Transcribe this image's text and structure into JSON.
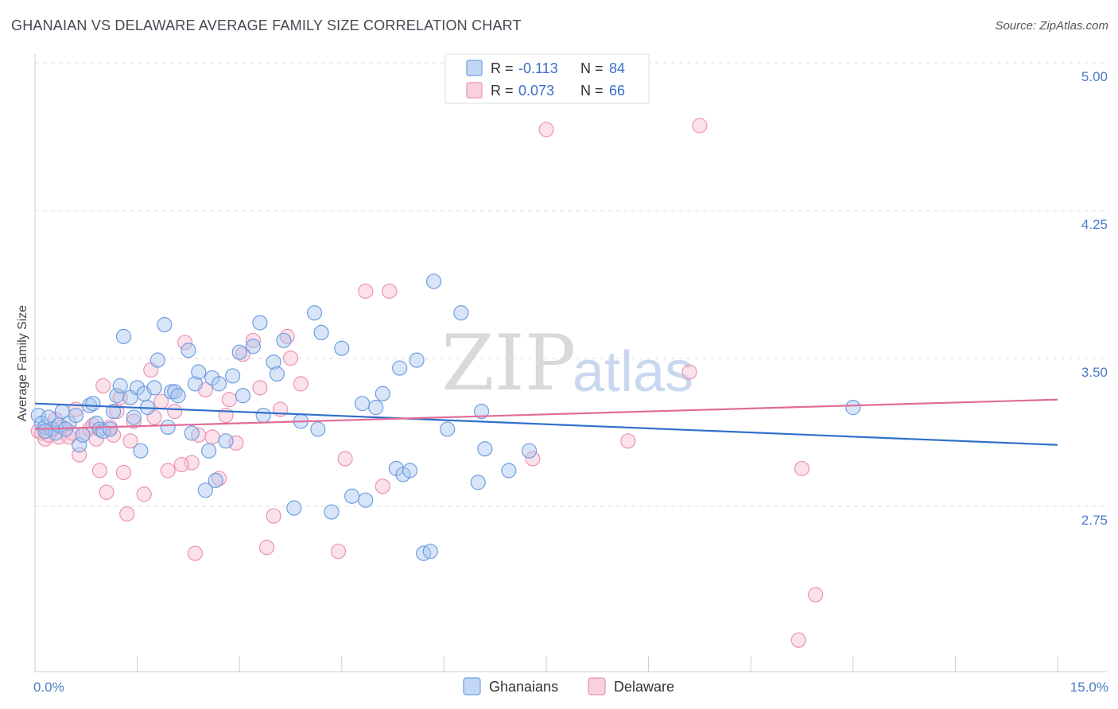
{
  "title": "GHANAIAN VS DELAWARE AVERAGE FAMILY SIZE CORRELATION CHART",
  "source": "Source: ZipAtlas.com",
  "watermark": {
    "zip": "ZIP",
    "atlas": "atlas"
  },
  "colors": {
    "ghanaians_fill": "#a8c6f0",
    "ghanaians_stroke": "#6f9ee0",
    "ghanaians_line": "#2f6fcc",
    "delaware_fill": "#f6bcd0",
    "delaware_stroke": "#ec93b3",
    "delaware_line": "#e06c98",
    "grid": "#dddddd",
    "axis_text": "#4a7cc7"
  },
  "legend": {
    "rows": [
      {
        "r_label": "R =",
        "r_value": "-0.113",
        "n_label": "N =",
        "n_value": "84"
      },
      {
        "r_label": "R =",
        "r_value": "0.073",
        "n_label": "N =",
        "n_value": "66"
      }
    ]
  },
  "bottom_legend": [
    "Ghanaians",
    "Delaware"
  ],
  "chart_data": {
    "type": "scatter",
    "ylabel": "Average Family Size",
    "xlim": [
      0,
      15
    ],
    "ylim": [
      2.0,
      5.1
    ],
    "x_tick_labels": [
      {
        "value": 0,
        "label": "0.0%"
      },
      {
        "value": 15,
        "label": "15.0%"
      }
    ],
    "y_ticks": [
      {
        "value": 2.75,
        "label": "2.75"
      },
      {
        "value": 3.5,
        "label": "3.50"
      },
      {
        "value": 4.25,
        "label": "4.25"
      },
      {
        "value": 5.0,
        "label": "5.00"
      }
    ],
    "series": [
      {
        "name": "Ghanaians",
        "r": -0.113,
        "n": 84,
        "trend": {
          "x": [
            0,
            15
          ],
          "y": [
            3.34,
            3.13
          ]
        },
        "points": [
          [
            0.05,
            3.28
          ],
          [
            0.1,
            3.24
          ],
          [
            0.15,
            3.22
          ],
          [
            0.2,
            3.27
          ],
          [
            0.25,
            3.21
          ],
          [
            0.3,
            3.19
          ],
          [
            0.35,
            3.23
          ],
          [
            0.4,
            3.3
          ],
          [
            0.5,
            3.24
          ],
          [
            0.6,
            3.28
          ],
          [
            0.65,
            3.13
          ],
          [
            0.7,
            3.18
          ],
          [
            0.8,
            3.33
          ],
          [
            0.85,
            3.34
          ],
          [
            0.9,
            3.24
          ],
          [
            0.95,
            3.21
          ],
          [
            1.0,
            3.2
          ],
          [
            1.1,
            3.21
          ],
          [
            1.15,
            3.3
          ],
          [
            1.2,
            3.38
          ],
          [
            1.25,
            3.43
          ],
          [
            1.3,
            3.68
          ],
          [
            1.4,
            3.37
          ],
          [
            1.45,
            3.27
          ],
          [
            1.5,
            3.42
          ],
          [
            1.55,
            3.1
          ],
          [
            1.6,
            3.39
          ],
          [
            1.65,
            3.32
          ],
          [
            1.75,
            3.42
          ],
          [
            1.8,
            3.56
          ],
          [
            1.9,
            3.74
          ],
          [
            1.95,
            3.22
          ],
          [
            2.0,
            3.4
          ],
          [
            2.05,
            3.4
          ],
          [
            2.1,
            3.38
          ],
          [
            2.25,
            3.61
          ],
          [
            2.3,
            3.19
          ],
          [
            2.35,
            3.44
          ],
          [
            2.4,
            3.5
          ],
          [
            2.5,
            2.9
          ],
          [
            2.55,
            3.1
          ],
          [
            2.6,
            3.47
          ],
          [
            2.65,
            2.95
          ],
          [
            2.7,
            3.44
          ],
          [
            2.8,
            3.15
          ],
          [
            2.9,
            3.48
          ],
          [
            3.05,
            3.38
          ],
          [
            3.2,
            3.63
          ],
          [
            3.3,
            3.75
          ],
          [
            3.35,
            3.28
          ],
          [
            3.5,
            3.55
          ],
          [
            3.55,
            3.49
          ],
          [
            3.65,
            3.66
          ],
          [
            3.8,
            2.81
          ],
          [
            3.9,
            3.25
          ],
          [
            4.1,
            3.8
          ],
          [
            4.15,
            3.21
          ],
          [
            4.2,
            3.7
          ],
          [
            4.35,
            2.79
          ],
          [
            4.5,
            3.62
          ],
          [
            4.65,
            2.87
          ],
          [
            4.8,
            3.34
          ],
          [
            4.85,
            2.85
          ],
          [
            5.0,
            3.32
          ],
          [
            5.1,
            3.39
          ],
          [
            5.3,
            3.01
          ],
          [
            5.35,
            3.52
          ],
          [
            5.4,
            2.98
          ],
          [
            5.5,
            3.0
          ],
          [
            5.6,
            3.56
          ],
          [
            5.7,
            2.58
          ],
          [
            5.8,
            2.59
          ],
          [
            5.85,
            3.96
          ],
          [
            6.05,
            3.21
          ],
          [
            6.25,
            3.8
          ],
          [
            6.5,
            2.94
          ],
          [
            6.55,
            3.3
          ],
          [
            6.6,
            3.11
          ],
          [
            6.95,
            3.0
          ],
          [
            7.25,
            3.1
          ],
          [
            12.0,
            3.32
          ],
          [
            0.15,
            3.2
          ],
          [
            0.45,
            3.21
          ],
          [
            3.0,
            3.6
          ]
        ]
      },
      {
        "name": "Delaware",
        "r": 0.073,
        "n": 66,
        "trend": {
          "x": [
            0,
            15
          ],
          "y": [
            3.21,
            3.36
          ]
        },
        "points": [
          [
            0.05,
            3.2
          ],
          [
            0.1,
            3.19
          ],
          [
            0.15,
            3.16
          ],
          [
            0.2,
            3.18
          ],
          [
            0.3,
            3.26
          ],
          [
            0.35,
            3.17
          ],
          [
            0.4,
            3.22
          ],
          [
            0.5,
            3.17
          ],
          [
            0.55,
            3.19
          ],
          [
            0.6,
            3.31
          ],
          [
            0.65,
            3.08
          ],
          [
            0.7,
            3.18
          ],
          [
            0.8,
            3.21
          ],
          [
            0.85,
            3.23
          ],
          [
            0.9,
            3.16
          ],
          [
            0.95,
            3.0
          ],
          [
            1.0,
            3.43
          ],
          [
            1.05,
            2.89
          ],
          [
            1.1,
            3.22
          ],
          [
            1.15,
            3.18
          ],
          [
            1.2,
            3.3
          ],
          [
            1.25,
            3.37
          ],
          [
            1.35,
            2.78
          ],
          [
            1.4,
            3.15
          ],
          [
            1.45,
            3.25
          ],
          [
            1.6,
            2.88
          ],
          [
            1.7,
            3.51
          ],
          [
            1.75,
            3.27
          ],
          [
            1.85,
            3.35
          ],
          [
            1.95,
            3.0
          ],
          [
            2.05,
            3.3
          ],
          [
            2.2,
            3.65
          ],
          [
            2.3,
            3.04
          ],
          [
            2.35,
            2.58
          ],
          [
            2.4,
            3.18
          ],
          [
            2.5,
            3.41
          ],
          [
            2.6,
            3.17
          ],
          [
            2.7,
            2.96
          ],
          [
            2.8,
            3.28
          ],
          [
            2.85,
            3.36
          ],
          [
            2.95,
            3.14
          ],
          [
            3.05,
            3.59
          ],
          [
            3.2,
            3.66
          ],
          [
            3.3,
            3.42
          ],
          [
            3.4,
            2.61
          ],
          [
            3.5,
            2.77
          ],
          [
            3.6,
            3.31
          ],
          [
            3.7,
            3.68
          ],
          [
            3.75,
            3.57
          ],
          [
            3.9,
            3.44
          ],
          [
            4.45,
            2.59
          ],
          [
            4.55,
            3.06
          ],
          [
            4.85,
            3.91
          ],
          [
            5.1,
            2.92
          ],
          [
            5.2,
            3.91
          ],
          [
            7.3,
            3.06
          ],
          [
            7.5,
            4.73
          ],
          [
            8.7,
            3.15
          ],
          [
            9.6,
            3.5
          ],
          [
            9.75,
            4.75
          ],
          [
            11.25,
            3.01
          ],
          [
            11.45,
            2.37
          ],
          [
            11.2,
            2.14
          ],
          [
            2.15,
            3.03
          ],
          [
            1.3,
            2.99
          ],
          [
            0.25,
            3.21
          ]
        ]
      }
    ]
  }
}
